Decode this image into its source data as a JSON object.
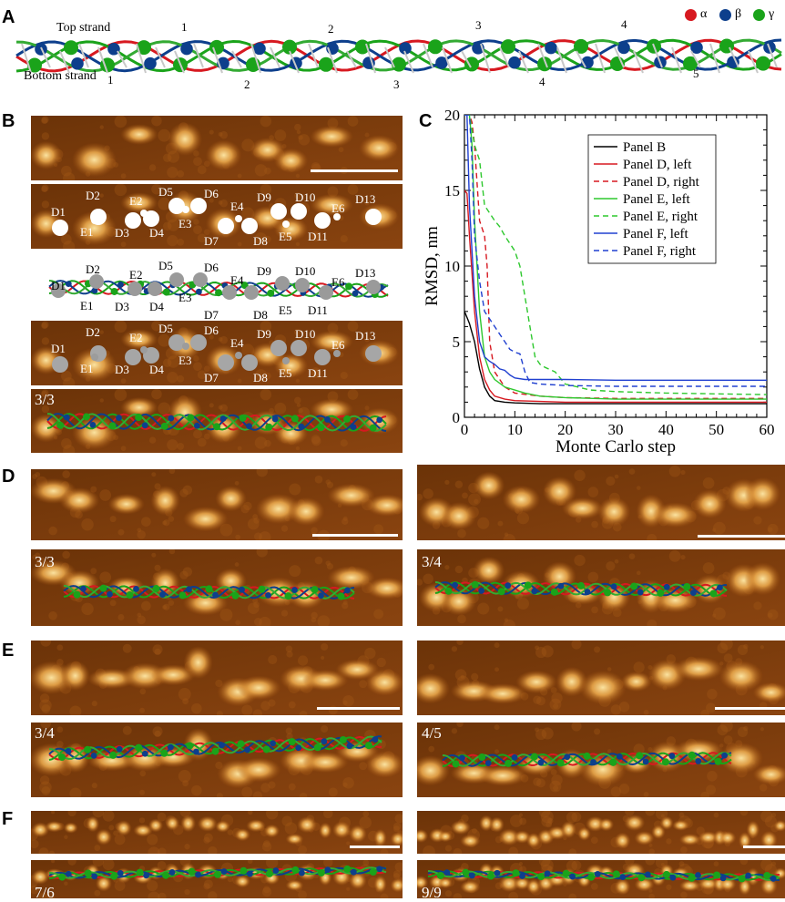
{
  "panel_labels": {
    "a": "A",
    "b": "B",
    "c": "C",
    "d": "D",
    "e": "E",
    "f": "F"
  },
  "panel_a": {
    "top_strand": "Top strand",
    "bottom_strand": "Bottom strand",
    "top_numbers": [
      "1",
      "2",
      "3",
      "4"
    ],
    "bottom_numbers": [
      "1",
      "2",
      "3",
      "4",
      "5"
    ],
    "legend": [
      {
        "symbol": "α",
        "color": "#d71920"
      },
      {
        "symbol": "β",
        "color": "#0d3f8c"
      },
      {
        "symbol": "γ",
        "color": "#1aa31a"
      }
    ]
  },
  "panel_b": {
    "fraction": "3/3",
    "monomer_labels": [
      "D1",
      "D2",
      "D3",
      "D4",
      "D5",
      "D6",
      "D7",
      "D8",
      "D9",
      "D10",
      "D11",
      "D13",
      "E1",
      "E2",
      "E3",
      "E4",
      "E5",
      "E6"
    ]
  },
  "panel_d": {
    "left_fraction": "3/3",
    "right_fraction": "3/4"
  },
  "panel_e": {
    "left_fraction": "3/4",
    "right_fraction": "4/5"
  },
  "panel_f": {
    "left_fraction": "7/6",
    "right_fraction": "9/9"
  },
  "colors": {
    "alpha": "#d71920",
    "beta": "#0d3f8c",
    "gamma": "#1aa31a",
    "afm_dark": "#5a2a06",
    "afm_mid": "#a8560f",
    "afm_light": "#fbe3a0"
  },
  "chart_data": {
    "type": "line",
    "title": "",
    "xlabel": "Monte Carlo step",
    "ylabel": "RMSD, nm",
    "xlim": [
      0,
      60
    ],
    "ylim": [
      0,
      20
    ],
    "xticks": [
      "0",
      "10",
      "20",
      "30",
      "40",
      "50",
      "60"
    ],
    "yticks": [
      "0",
      "5",
      "10",
      "15",
      "20"
    ],
    "legend_position": "top-right",
    "series": [
      {
        "name": "Panel B",
        "color": "#000000",
        "dash": "solid",
        "x": [
          0,
          0.5,
          1,
          2,
          3,
          4,
          5,
          6,
          8,
          10,
          15,
          20,
          30,
          40,
          50,
          60
        ],
        "y": [
          7,
          6.6,
          6.2,
          5,
          3.2,
          2,
          1.4,
          1.1,
          1.0,
          0.95,
          0.9,
          0.9,
          0.9,
          0.9,
          0.9,
          0.9
        ]
      },
      {
        "name": "Panel D, left",
        "color": "#d71920",
        "dash": "solid",
        "x": [
          0,
          0.5,
          1,
          2,
          3,
          4,
          5,
          6,
          8,
          10,
          15,
          20,
          30,
          40,
          50,
          60
        ],
        "y": [
          15,
          14.8,
          12,
          7,
          4,
          2.5,
          1.8,
          1.4,
          1.2,
          1.1,
          1.05,
          1.0,
          1.0,
          1.0,
          1.0,
          1.0
        ]
      },
      {
        "name": "Panel D, right",
        "color": "#d71920",
        "dash": "dashed",
        "x": [
          0,
          1,
          1.5,
          2,
          3,
          4,
          4.5,
          5,
          6,
          8,
          10,
          15,
          20,
          30,
          40,
          50,
          60
        ],
        "y": [
          20,
          20,
          19.5,
          18,
          13,
          12,
          10,
          5,
          3,
          2,
          1.6,
          1.4,
          1.3,
          1.25,
          1.25,
          1.25,
          1.25
        ]
      },
      {
        "name": "Panel E, left",
        "color": "#2ec82e",
        "dash": "solid",
        "x": [
          0,
          1,
          1.5,
          2,
          3,
          4,
          5,
          6,
          8,
          10,
          12,
          15,
          20,
          30,
          40,
          50,
          60
        ],
        "y": [
          20,
          20,
          18,
          13,
          7,
          4,
          3,
          2.5,
          2,
          1.8,
          1.6,
          1.4,
          1.3,
          1.2,
          1.2,
          1.2,
          1.2
        ]
      },
      {
        "name": "Panel E, right",
        "color": "#2ec82e",
        "dash": "dashed",
        "x": [
          0,
          1,
          2,
          2.5,
          3,
          4,
          5,
          6,
          7,
          8,
          9,
          10,
          11,
          12,
          13,
          14,
          15,
          16,
          18,
          20,
          25,
          30,
          40,
          50,
          60
        ],
        "y": [
          20,
          20,
          18,
          17.5,
          17,
          14,
          13.5,
          13,
          12.6,
          12,
          11.5,
          11,
          10,
          8,
          6,
          4,
          3.5,
          3.3,
          3,
          2.2,
          1.8,
          1.7,
          1.6,
          1.55,
          1.5
        ]
      },
      {
        "name": "Panel F, left",
        "color": "#2040d0",
        "dash": "solid",
        "x": [
          0,
          0.5,
          1,
          2,
          3,
          4,
          5,
          6,
          7,
          8,
          9,
          10,
          12,
          15,
          20,
          30,
          40,
          50,
          60
        ],
        "y": [
          20,
          20,
          14,
          8,
          5,
          4,
          3.7,
          3.5,
          3.2,
          3.1,
          2.8,
          2.6,
          2.5,
          2.5,
          2.5,
          2.45,
          2.45,
          2.45,
          2.45
        ]
      },
      {
        "name": "Panel F, right",
        "color": "#2040d0",
        "dash": "dashed",
        "x": [
          0,
          1,
          1.5,
          2,
          3,
          4,
          5,
          6,
          7,
          8,
          9,
          10,
          11,
          12,
          13,
          15,
          20,
          30,
          40,
          50,
          60
        ],
        "y": [
          20,
          20,
          17,
          12,
          9,
          7,
          6.5,
          6,
          5.5,
          5,
          4.5,
          4.3,
          4.2,
          3,
          2.3,
          2.2,
          2.1,
          2.05,
          2.05,
          2.05,
          2.05
        ]
      }
    ]
  }
}
